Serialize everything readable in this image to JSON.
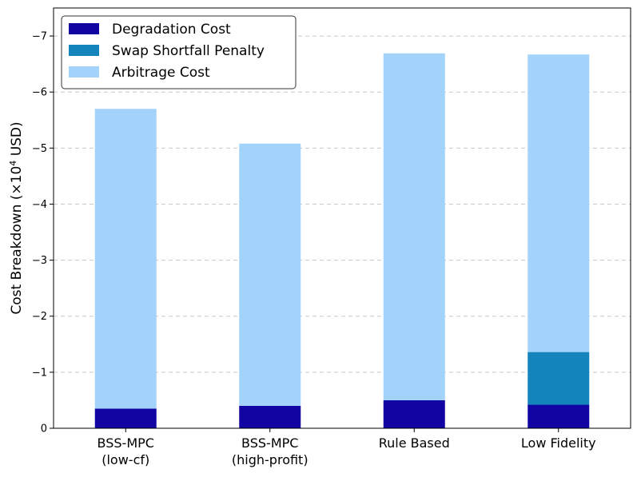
{
  "chart_data": {
    "type": "bar",
    "stacked": true,
    "categories": [
      [
        "BSS-MPC",
        "(low-cf)"
      ],
      [
        "BSS-MPC",
        "(high-profit)"
      ],
      [
        "Rule Based"
      ],
      [
        "Low Fidelity"
      ]
    ],
    "series": [
      {
        "name": "Degradation Cost",
        "color": "#1204a3",
        "values": [
          -0.35,
          -0.4,
          -0.5,
          -0.42
        ]
      },
      {
        "name": "Swap Shortfall Penalty",
        "color": "#1384bc",
        "values": [
          0.0,
          0.0,
          0.0,
          -0.94
        ]
      },
      {
        "name": "Arbitrage Cost",
        "color": "#a3d2fa",
        "values": [
          -5.35,
          -4.68,
          -6.19,
          -5.31
        ]
      }
    ],
    "ylabel_main": "Cost Breakdown (×10",
    "ylabel_exp": "4",
    "ylabel_end": " USD)",
    "yticks": [
      0,
      -1,
      -2,
      -3,
      -4,
      -5,
      -6,
      -7
    ],
    "ytick_labels": [
      "0",
      "−1",
      "−2",
      "−3",
      "−4",
      "−5",
      "−6",
      "−7"
    ],
    "ylim": [
      0,
      -7.5
    ],
    "y_inverted": true,
    "grid": "y-dashed",
    "legend_position": "top-left"
  }
}
